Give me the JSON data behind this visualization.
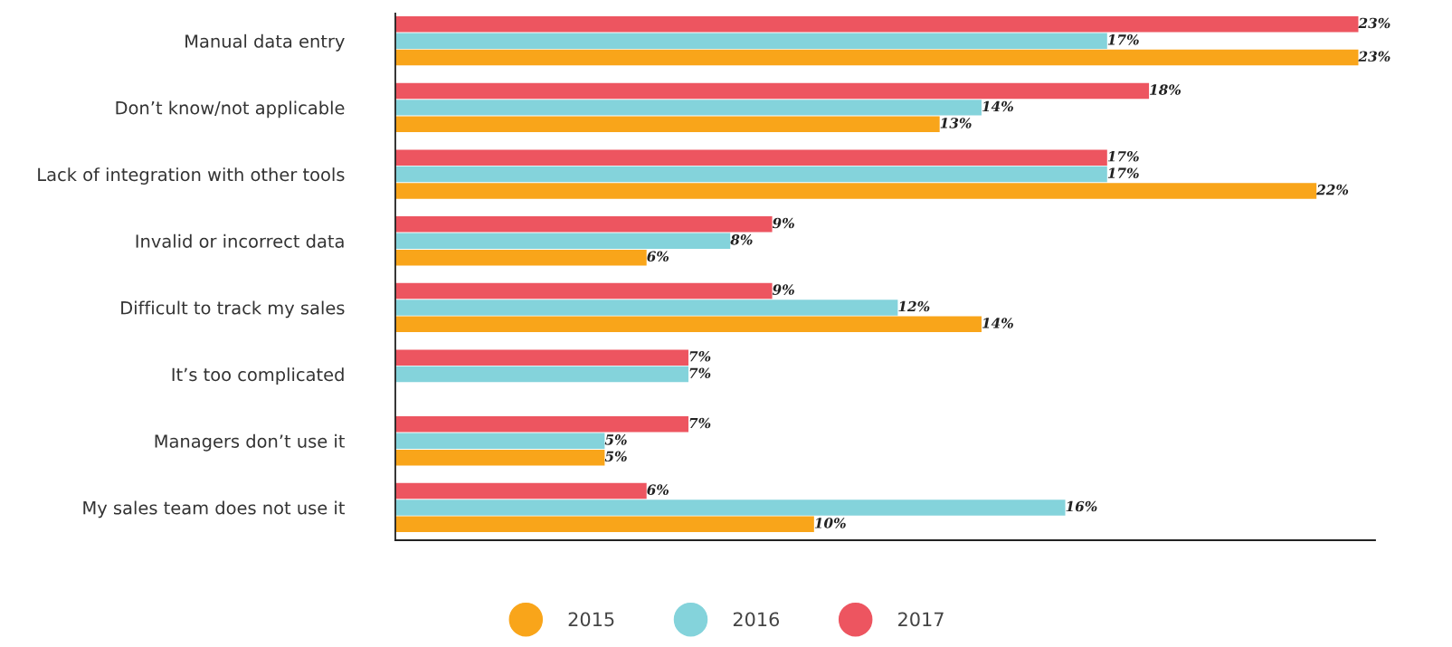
{
  "chart_data": {
    "type": "bar",
    "orientation": "horizontal",
    "categories": [
      "Manual data entry",
      "Don’t know/not applicable",
      "Lack of integration with other tools",
      "Invalid or incorrect data",
      "Difficult to track my sales",
      "It’s too complicated",
      "Managers don’t use it",
      "My sales team does not use it"
    ],
    "series": [
      {
        "name": "2015",
        "color": "#f9a51a",
        "values": [
          23,
          13,
          22,
          6,
          14,
          null,
          5,
          10
        ],
        "value_labels": [
          "23%",
          "13%",
          "22%",
          "6%",
          "14%",
          null,
          "5%",
          "10%"
        ]
      },
      {
        "name": "2016",
        "color": "#84d3db",
        "values": [
          17,
          14,
          17,
          8,
          12,
          7,
          5,
          16
        ],
        "value_labels": [
          "17%",
          "14%",
          "17%",
          "8%",
          "12%",
          "7%",
          "5%",
          "16%"
        ]
      },
      {
        "name": "2017",
        "color": "#ed5560",
        "values": [
          23,
          18,
          17,
          9,
          9,
          7,
          7,
          6
        ],
        "value_labels": [
          "23%",
          "18%",
          "17%",
          "9%",
          "9%",
          "7%",
          "7%",
          "6%"
        ]
      }
    ],
    "xlim": [
      0,
      23.4
    ],
    "tick_labels": "y",
    "grid": false,
    "legend": "bottom",
    "marker": "circle"
  }
}
